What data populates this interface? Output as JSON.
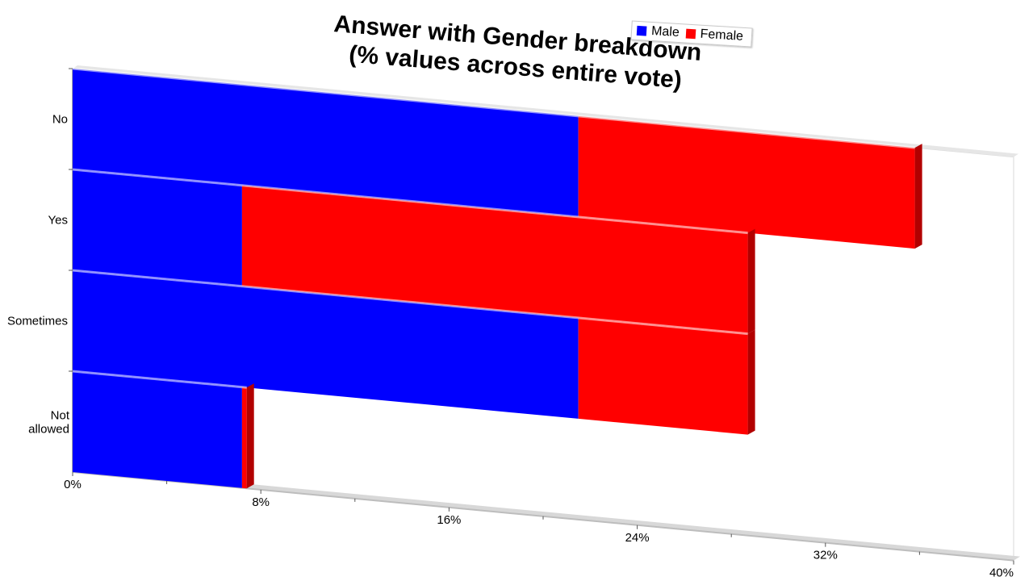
{
  "chart_data": {
    "type": "bar",
    "orientation": "horizontal",
    "stacked": true,
    "title": "Answer with Gender breakdown\n(% values across entire vote)",
    "title_lines": [
      "Answer with Gender breakdown",
      "(% values across entire vote)"
    ],
    "categories": [
      "No",
      "Yes",
      "Sometimes",
      "Not allowed"
    ],
    "series": [
      {
        "name": "Male",
        "values": [
          21.5,
          7.2,
          21.5,
          7.2
        ],
        "color": "#0000ff",
        "shade": "#00009c"
      },
      {
        "name": "Female",
        "values": [
          14.3,
          21.5,
          7.2,
          0.2
        ],
        "color": "#ff0000",
        "shade": "#b20000"
      }
    ],
    "xlim": [
      0,
      40
    ],
    "x_ticks": [
      "0%",
      "8%",
      "16%",
      "24%",
      "32%",
      "40%"
    ],
    "tick_values": [
      0,
      8,
      16,
      24,
      32,
      40
    ],
    "legend_position": "top-right",
    "grid": false
  }
}
